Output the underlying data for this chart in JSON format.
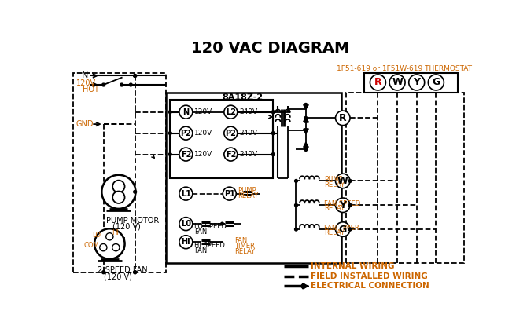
{
  "title": "120 VAC DIAGRAM",
  "title_fontsize": 14,
  "title_color": "#000000",
  "background_color": "#ffffff",
  "line_color": "#000000",
  "orange_color": "#cc6600",
  "thermostat_label": "1F51-619 or 1F51W-619 THERMOSTAT",
  "board_label": "8A18Z-2",
  "legend_items": [
    {
      "label": "INTERNAL WIRING",
      "style": "solid"
    },
    {
      "label": "FIELD INSTALLED WIRING",
      "style": "dashed"
    },
    {
      "label": "ELECTRICAL CONNECTION",
      "style": "arrow"
    }
  ],
  "terminal_letters": [
    "R",
    "W",
    "Y",
    "G"
  ],
  "pump_motor_label": "PUMP MOTOR\n(120 V)",
  "fan_label": "2-SPEED FAN\n(120 V)"
}
